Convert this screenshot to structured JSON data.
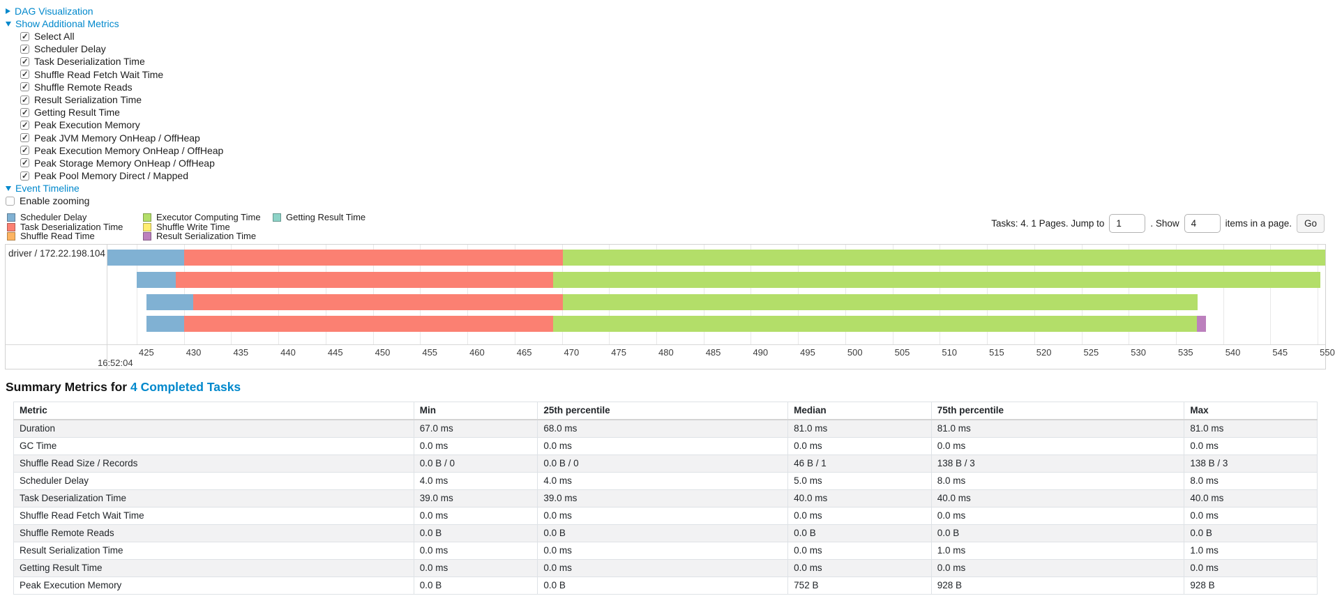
{
  "colors": {
    "link": "#0088cc",
    "scheduler_delay": "#80B1D3",
    "task_deserialization": "#FB8072",
    "shuffle_read": "#FDB462",
    "executor_computing": "#B3DE69",
    "shuffle_write": "#FFED6F",
    "result_serialization": "#BC80BD",
    "getting_result": "#8DD3C7"
  },
  "toggles": {
    "dag_visualization": "DAG Visualization",
    "show_additional_metrics": "Show Additional Metrics",
    "event_timeline": "Event Timeline"
  },
  "metric_checkboxes": [
    {
      "label": "Select All",
      "checked": true
    },
    {
      "label": "Scheduler Delay",
      "checked": true
    },
    {
      "label": "Task Deserialization Time",
      "checked": true
    },
    {
      "label": "Shuffle Read Fetch Wait Time",
      "checked": true
    },
    {
      "label": "Shuffle Remote Reads",
      "checked": true
    },
    {
      "label": "Result Serialization Time",
      "checked": true
    },
    {
      "label": "Getting Result Time",
      "checked": true
    },
    {
      "label": "Peak Execution Memory",
      "checked": true
    },
    {
      "label": "Peak JVM Memory OnHeap / OffHeap",
      "checked": true
    },
    {
      "label": "Peak Execution Memory OnHeap / OffHeap",
      "checked": true
    },
    {
      "label": "Peak Storage Memory OnHeap / OffHeap",
      "checked": true
    },
    {
      "label": "Peak Pool Memory Direct / Mapped",
      "checked": true
    }
  ],
  "enable_zooming": {
    "label": "Enable zooming",
    "checked": false
  },
  "legend": {
    "columns": [
      [
        {
          "label": "Scheduler Delay",
          "color_key": "scheduler_delay"
        },
        {
          "label": "Task Deserialization Time",
          "color_key": "task_deserialization"
        },
        {
          "label": "Shuffle Read Time",
          "color_key": "shuffle_read"
        }
      ],
      [
        {
          "label": "Executor Computing Time",
          "color_key": "executor_computing"
        },
        {
          "label": "Shuffle Write Time",
          "color_key": "shuffle_write"
        },
        {
          "label": "Result Serialization Time",
          "color_key": "result_serialization"
        }
      ],
      [
        {
          "label": "Getting Result Time",
          "color_key": "getting_result"
        }
      ]
    ]
  },
  "pagination": {
    "tasks_text": "Tasks: 4. 1 Pages. Jump to",
    "jump_value": "1",
    "show_text": ". Show",
    "show_value": "4",
    "suffix_text": "items in a page.",
    "go_label": "Go"
  },
  "chart_data": {
    "type": "timeline",
    "group_label": "driver / 172.22.198.104",
    "time_label": "16:52:04",
    "axis": {
      "window_start": 421.9,
      "window_end": 550.8,
      "tick_min": 425,
      "tick_max": 550,
      "tick_step": 5
    },
    "tasks": [
      {
        "start": 421.9,
        "segments": [
          {
            "type": "scheduler_delay",
            "end": 430.0
          },
          {
            "type": "task_deserialization",
            "end": 470.1
          },
          {
            "type": "executor_computing",
            "end": 550.8
          }
        ]
      },
      {
        "start": 425.0,
        "segments": [
          {
            "type": "scheduler_delay",
            "end": 429.1
          },
          {
            "type": "task_deserialization",
            "end": 469.1
          },
          {
            "type": "executor_computing",
            "end": 550.3
          }
        ]
      },
      {
        "start": 426.0,
        "segments": [
          {
            "type": "scheduler_delay",
            "end": 431.0
          },
          {
            "type": "task_deserialization",
            "end": 470.1
          },
          {
            "type": "executor_computing",
            "end": 537.3
          }
        ]
      },
      {
        "start": 426.0,
        "segments": [
          {
            "type": "scheduler_delay",
            "end": 430.0
          },
          {
            "type": "task_deserialization",
            "end": 469.1
          },
          {
            "type": "executor_computing",
            "end": 537.2
          },
          {
            "type": "result_serialization",
            "end": 538.2
          }
        ]
      }
    ]
  },
  "summary": {
    "title_prefix": "Summary Metrics for",
    "title_link": "4 Completed Tasks"
  },
  "table": {
    "columns": [
      "Metric",
      "Min",
      "25th percentile",
      "Median",
      "75th percentile",
      "Max"
    ],
    "rows": [
      {
        "metric": "Duration",
        "values": [
          "67.0 ms",
          "68.0 ms",
          "81.0 ms",
          "81.0 ms",
          "81.0 ms"
        ]
      },
      {
        "metric": "GC Time",
        "values": [
          "0.0 ms",
          "0.0 ms",
          "0.0 ms",
          "0.0 ms",
          "0.0 ms"
        ]
      },
      {
        "metric": "Shuffle Read Size / Records",
        "values": [
          "0.0 B / 0",
          "0.0 B / 0",
          "46 B / 1",
          "138 B / 3",
          "138 B / 3"
        ]
      },
      {
        "metric": "Scheduler Delay",
        "values": [
          "4.0 ms",
          "4.0 ms",
          "5.0 ms",
          "8.0 ms",
          "8.0 ms"
        ]
      },
      {
        "metric": "Task Deserialization Time",
        "values": [
          "39.0 ms",
          "39.0 ms",
          "40.0 ms",
          "40.0 ms",
          "40.0 ms"
        ]
      },
      {
        "metric": "Shuffle Read Fetch Wait Time",
        "values": [
          "0.0 ms",
          "0.0 ms",
          "0.0 ms",
          "0.0 ms",
          "0.0 ms"
        ]
      },
      {
        "metric": "Shuffle Remote Reads",
        "values": [
          "0.0 B",
          "0.0 B",
          "0.0 B",
          "0.0 B",
          "0.0 B"
        ]
      },
      {
        "metric": "Result Serialization Time",
        "values": [
          "0.0 ms",
          "0.0 ms",
          "0.0 ms",
          "1.0 ms",
          "1.0 ms"
        ]
      },
      {
        "metric": "Getting Result Time",
        "values": [
          "0.0 ms",
          "0.0 ms",
          "0.0 ms",
          "0.0 ms",
          "0.0 ms"
        ]
      },
      {
        "metric": "Peak Execution Memory",
        "values": [
          "0.0 B",
          "0.0 B",
          "752 B",
          "928 B",
          "928 B"
        ]
      }
    ]
  }
}
